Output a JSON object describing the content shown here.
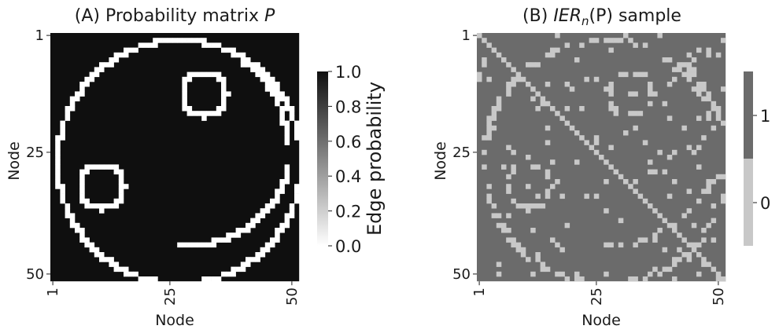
{
  "chart_data": [
    {
      "type": "heatmap",
      "title_prefix": "(A) Probability matrix ",
      "title_italic": "P",
      "xlabel": "Node",
      "ylabel": "Node",
      "n_nodes": 51,
      "xticks": [
        "1",
        "25",
        "50"
      ],
      "yticks": [
        "1",
        "25",
        "50"
      ],
      "colormap": "Greys",
      "cmap_low": "#ffffff",
      "cmap_high": "#0f0f0f",
      "colorbar": {
        "label": "Edge probability",
        "range": [
          0,
          1
        ],
        "ticks": [
          "0.0",
          "0.2",
          "0.4",
          "0.6",
          "0.8",
          "1.0"
        ],
        "tick_values": [
          0.0,
          0.2,
          0.4,
          0.6,
          0.8,
          1.0
        ]
      },
      "values": {
        "background": 1.0,
        "shapes": 0.0,
        "large_circle": {
          "center_row": 26,
          "center_col": 26,
          "radius": 25
        },
        "inner_arc": {
          "center_row": 22,
          "center_col": 28,
          "radius": 21,
          "from_deg": -20,
          "to_deg": 90
        },
        "small_circle_1": {
          "center_row": 12,
          "center_col": 31,
          "radius": 4.5
        },
        "small_circle_2": {
          "center_row": 31,
          "center_col": 10,
          "radius": 4.5
        }
      }
    },
    {
      "type": "heatmap",
      "title_prefix": "(B) ",
      "title_italic_1": "IER",
      "title_sub": "n",
      "title_italic_2": "(P)",
      "title_suffix": " sample",
      "xlabel": "Node",
      "ylabel": "Node",
      "n_nodes": 51,
      "xticks": [
        "1",
        "25",
        "50"
      ],
      "yticks": [
        "1",
        "25",
        "50"
      ],
      "colors": {
        "1": "#6b6b6b",
        "0": "#c8c8c8"
      },
      "colorbar": {
        "ticks": [
          "1",
          "0"
        ]
      },
      "values": {
        "background": 1,
        "shapes": 0,
        "diagonal": 0,
        "noise_seed": 7,
        "noise_rate": 0.045
      }
    }
  ]
}
